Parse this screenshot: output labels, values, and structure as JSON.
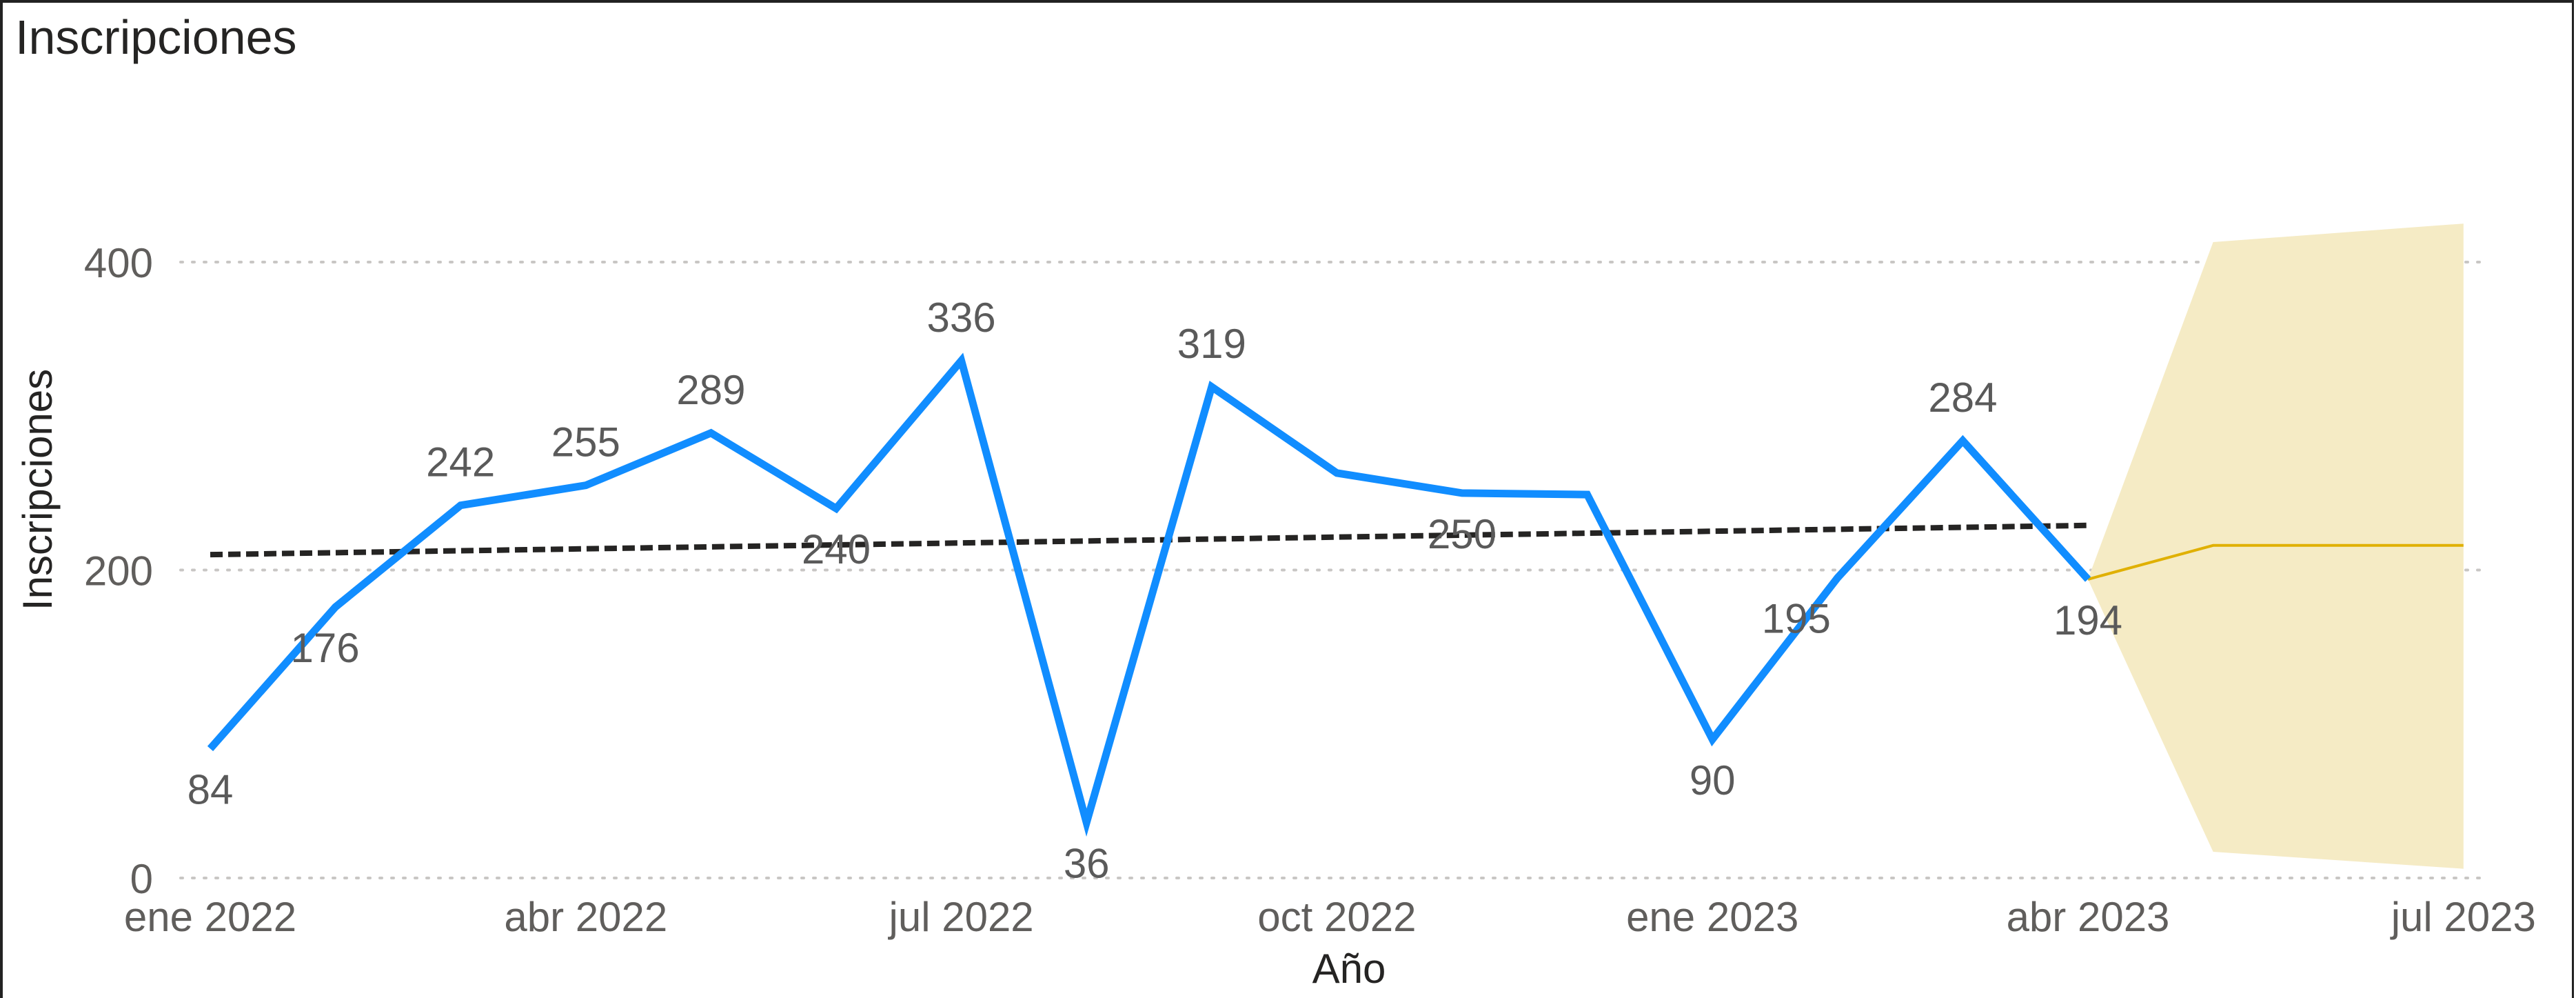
{
  "title": "Inscripciones",
  "chart_data": {
    "type": "line",
    "title": "Inscripciones",
    "xlabel": "Año",
    "ylabel": "Inscripciones",
    "ylim": [
      0,
      440
    ],
    "yticks": [
      0,
      200,
      400
    ],
    "x_tick_labels": [
      "ene 2022",
      "abr 2022",
      "jul 2022",
      "oct 2022",
      "ene 2023",
      "abr 2023",
      "jul 2023"
    ],
    "grid": true,
    "x": [
      "2022-01",
      "2022-02",
      "2022-03",
      "2022-04",
      "2022-05",
      "2022-06",
      "2022-07",
      "2022-08",
      "2022-09",
      "2022-10",
      "2022-11",
      "2022-12",
      "2023-01",
      "2023-02",
      "2023-03",
      "2023-04"
    ],
    "series": [
      {
        "values": [
          84,
          176,
          242,
          255,
          289,
          240,
          336,
          36,
          319,
          263,
          250,
          249,
          90,
          195,
          284,
          194
        ],
        "labels": [
          "84",
          "176",
          "242",
          "255",
          "289",
          "240",
          "336",
          "36",
          "319",
          "",
          "250",
          "",
          "90",
          "195",
          "284",
          "194"
        ],
        "color": "#118DFF"
      }
    ],
    "trend": {
      "start": [
        "2022-01",
        210
      ],
      "end": [
        "2023-04",
        229
      ],
      "color": "#252423",
      "style": "dashed"
    },
    "forecast": {
      "color": "#E0B000",
      "band_color": "#F5EBC5",
      "points": [
        [
          "2023-04",
          194
        ],
        [
          "2023-05",
          216
        ],
        [
          "2023-07",
          216
        ]
      ],
      "upper": [
        [
          "2023-04",
          194
        ],
        [
          "2023-05",
          413
        ],
        [
          "2023-07",
          425
        ]
      ],
      "lower": [
        [
          "2023-04",
          194
        ],
        [
          "2023-05",
          17
        ],
        [
          "2023-07",
          6
        ]
      ]
    }
  }
}
